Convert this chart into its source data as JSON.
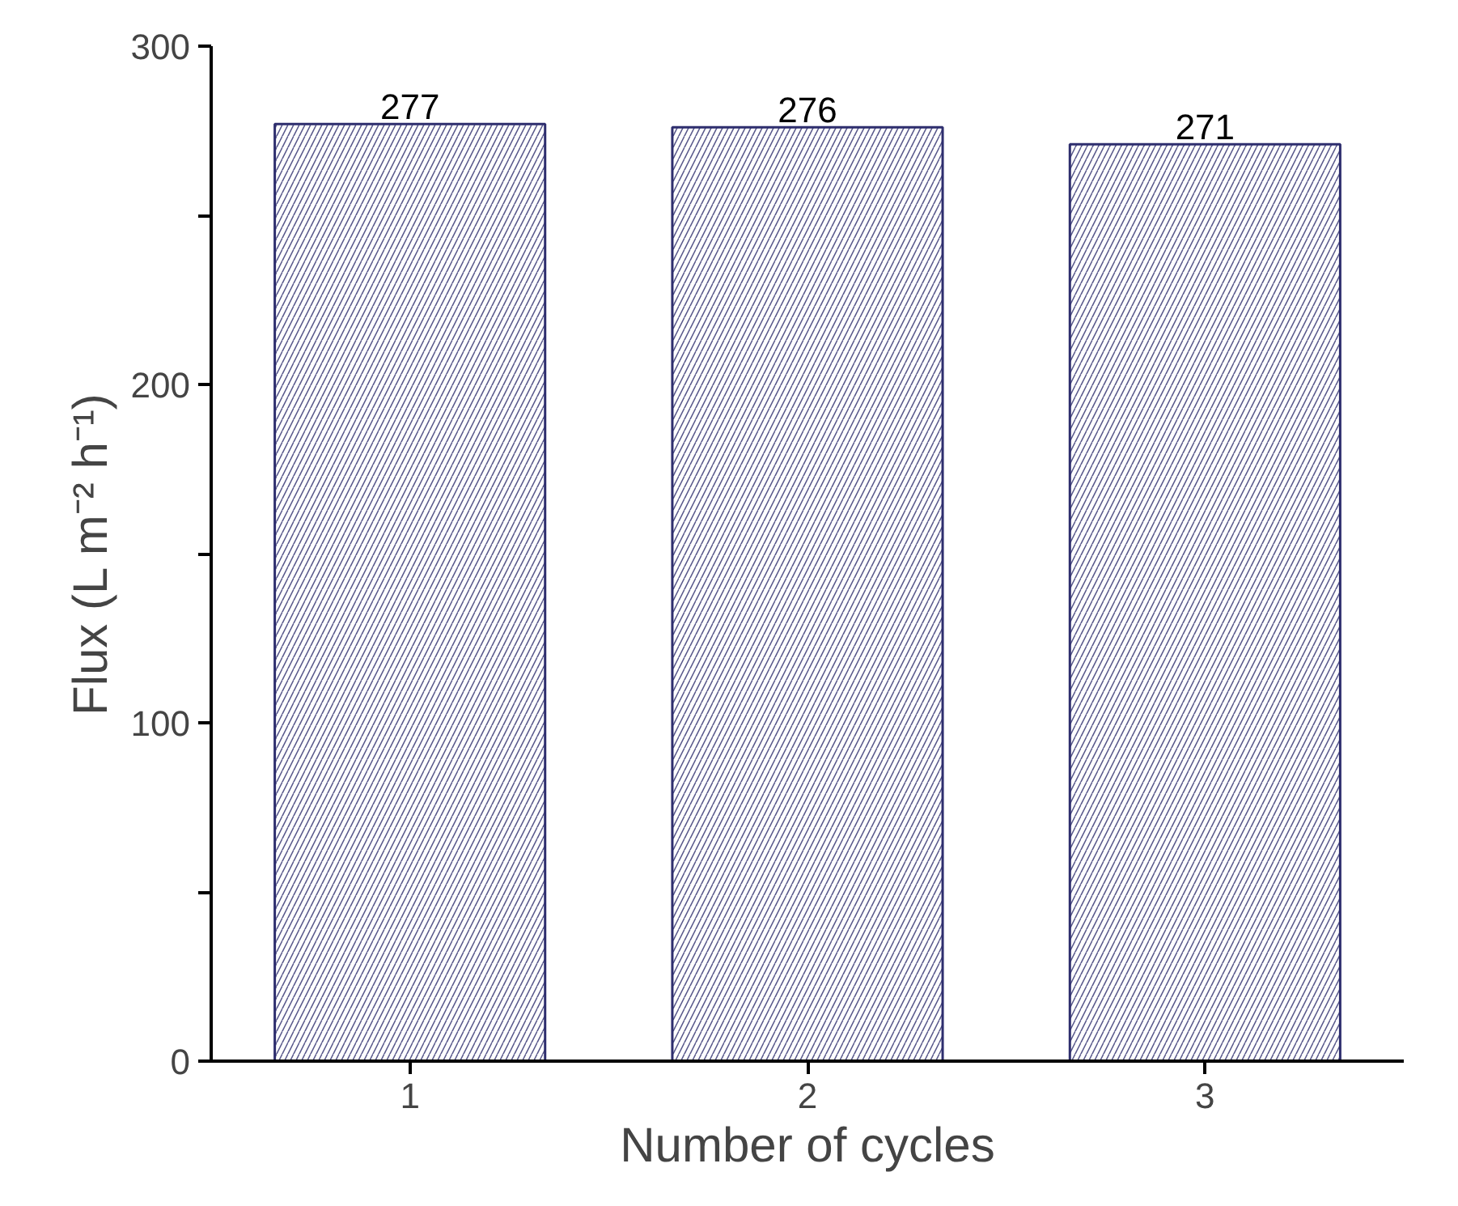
{
  "chart_data": {
    "type": "bar",
    "xlabel": "Number of cycles",
    "ylabel": "Flux (L m⁻² h⁻¹)",
    "categories": [
      "1",
      "2",
      "3"
    ],
    "values": [
      277,
      276,
      271
    ],
    "color": "#2e2e6e",
    "ylim": [
      0,
      300
    ],
    "yticks": [
      0,
      {
        "value": 50,
        "label": null
      },
      100,
      {
        "value": 150,
        "label": null
      },
      200,
      {
        "value": 250,
        "label": null
      },
      300
    ],
    "grid": false,
    "data_labels": true
  }
}
